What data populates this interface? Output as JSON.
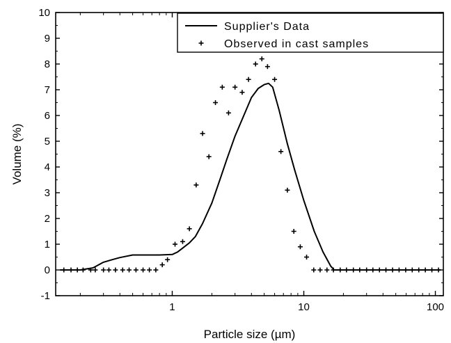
{
  "chart_data": {
    "type": "line",
    "xlabel": "Particle size (µm)",
    "ylabel": "Volume (%)",
    "x_scale": "log",
    "xlim": [
      0.13,
      115
    ],
    "ylim": [
      -1,
      10
    ],
    "x_ticks": [
      1,
      10,
      100
    ],
    "x_tick_labels": [
      "1",
      "10",
      "100"
    ],
    "y_ticks": [
      -1,
      0,
      1,
      2,
      3,
      4,
      5,
      6,
      7,
      8,
      9,
      10
    ],
    "y_tick_labels": [
      "-1",
      "0",
      "1",
      "2",
      "3",
      "4",
      "5",
      "6",
      "7",
      "8",
      "9",
      "10"
    ],
    "grid": false,
    "legend_position": "top-right",
    "series": [
      {
        "name": "Supplier's Data",
        "style": "line",
        "color": "#000000",
        "x": [
          0.14,
          0.2,
          0.25,
          0.3,
          0.35,
          0.4,
          0.5,
          0.6,
          0.8,
          1.0,
          1.1,
          1.2,
          1.35,
          1.5,
          1.7,
          2.0,
          2.3,
          2.6,
          3.0,
          3.5,
          4.0,
          4.5,
          5.0,
          5.4,
          5.8,
          6.5,
          7.5,
          8.5,
          10.0,
          12.0,
          14.0,
          16.0,
          17.0,
          20.0,
          50.0,
          110.0
        ],
        "y": [
          0.0,
          0.0,
          0.08,
          0.3,
          0.4,
          0.48,
          0.58,
          0.58,
          0.58,
          0.6,
          0.7,
          0.85,
          1.05,
          1.3,
          1.8,
          2.6,
          3.5,
          4.3,
          5.2,
          6.0,
          6.7,
          7.05,
          7.2,
          7.25,
          7.1,
          6.2,
          4.9,
          3.9,
          2.7,
          1.5,
          0.7,
          0.15,
          0.0,
          0.0,
          0.0,
          0.0
        ]
      },
      {
        "name": "Observed in cast samples",
        "style": "cross",
        "color": "#000000",
        "x": [
          0.15,
          0.17,
          0.19,
          0.21,
          0.24,
          0.26,
          0.3,
          0.33,
          0.37,
          0.42,
          0.47,
          0.53,
          0.6,
          0.67,
          0.75,
          0.84,
          0.92,
          1.05,
          1.2,
          1.35,
          1.52,
          1.7,
          1.9,
          2.13,
          2.4,
          2.68,
          3.0,
          3.4,
          3.8,
          4.3,
          4.8,
          5.3,
          6.0,
          6.7,
          7.5,
          8.4,
          9.4,
          10.5,
          11.9,
          13.3,
          15.0,
          16.8,
          18.9,
          21.1,
          23.8,
          26.6,
          30.0,
          33.5,
          37.6,
          42.1,
          47.3,
          53.0,
          59.5,
          66.7,
          74.8,
          83.9,
          94.1,
          105.6
        ],
        "y": [
          0.0,
          0.0,
          0.0,
          0.0,
          0.0,
          0.0,
          0.0,
          0.0,
          0.0,
          0.0,
          0.0,
          0.0,
          0.0,
          0.0,
          0.0,
          0.2,
          0.4,
          1.0,
          1.1,
          1.6,
          3.3,
          5.3,
          4.4,
          6.5,
          7.1,
          6.1,
          7.1,
          6.9,
          7.4,
          8.0,
          8.2,
          7.9,
          7.4,
          4.6,
          3.1,
          1.5,
          0.9,
          0.5,
          0.0,
          0.0,
          0.0,
          0.0,
          0.0,
          0.0,
          0.0,
          0.0,
          0.0,
          0.0,
          0.0,
          0.0,
          0.0,
          0.0,
          0.0,
          0.0,
          0.0,
          0.0,
          0.0,
          0.0
        ]
      }
    ]
  }
}
